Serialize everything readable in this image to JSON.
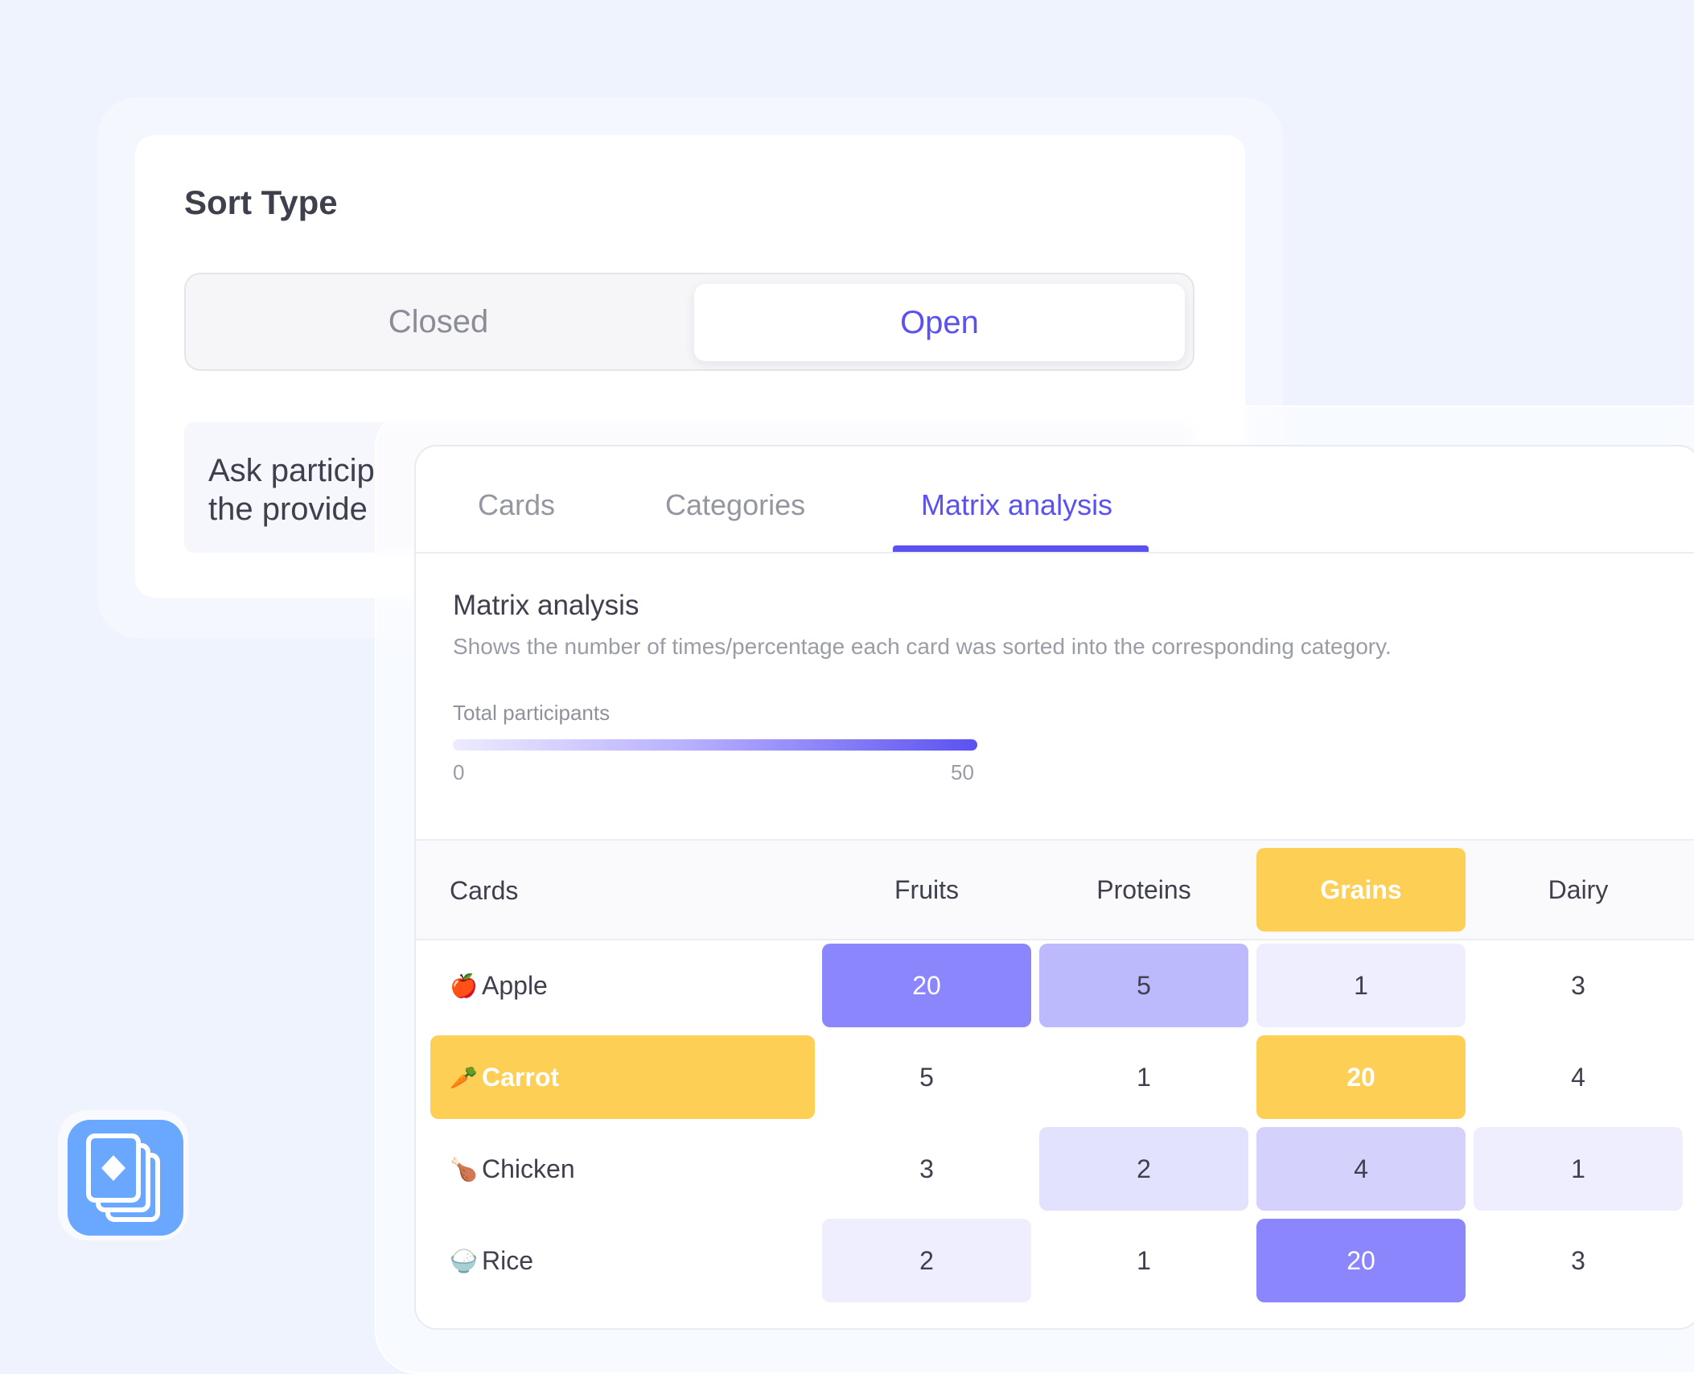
{
  "sort_type": {
    "title": "Sort Type",
    "options": [
      "Closed",
      "Open"
    ],
    "selected": "Open",
    "description": "Ask particip\nthe provide"
  },
  "panel": {
    "tabs": [
      "Cards",
      "Categories",
      "Matrix analysis"
    ],
    "active_tab": "Matrix analysis",
    "heading": "Matrix analysis",
    "subheading": "Shows the number of times/percentage each card was sorted into the corresponding category.",
    "legend": {
      "label": "Total participants",
      "min": "0",
      "max": "50"
    },
    "table": {
      "corner": "Cards",
      "columns": [
        "Fruits",
        "Proteins",
        "Grains",
        "Dairy"
      ],
      "highlight_column": "Grains",
      "highlight_row": "Carrot",
      "rows": [
        {
          "emoji": "🍎",
          "label": "Apple",
          "values": [
            "20",
            "5",
            "1",
            "3"
          ]
        },
        {
          "emoji": "🥕",
          "label": "Carrot",
          "values": [
            "5",
            "1",
            "20",
            "4"
          ]
        },
        {
          "emoji": "🍗",
          "label": "Chicken",
          "values": [
            "3",
            "2",
            "4",
            "1"
          ]
        },
        {
          "emoji": "🍚",
          "label": "Rice",
          "values": [
            "2",
            "1",
            "20",
            "3"
          ]
        }
      ]
    }
  },
  "colors": {
    "accent": "#5b51f0",
    "highlight": "#fdcf55",
    "background": "#eef3fd",
    "app_icon": "#6aa8ff"
  },
  "icons": {
    "app": "card-stack-icon"
  }
}
